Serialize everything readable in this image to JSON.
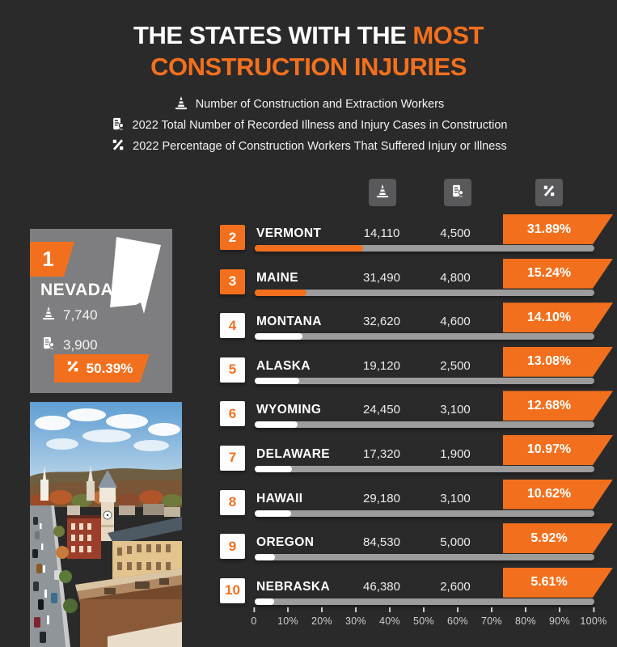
{
  "title": {
    "line1_white": "THE STATES WITH THE ",
    "line1_orange": "MOST",
    "line2_orange": "CONSTRUCTION INJURIES"
  },
  "legend": [
    {
      "icon": "cone-icon",
      "label": "Number of Construction and Extraction Workers"
    },
    {
      "icon": "injury-report-icon",
      "label": "2022 Total Number of Recorded Illness and Injury Cases in Construction"
    },
    {
      "icon": "percent-icon",
      "label": "2022 Percentage of Construction Workers That Suffered Injury or Illness"
    }
  ],
  "columns": {
    "workers_icon": "cone-icon",
    "cases_icon": "injury-report-icon",
    "percent_icon": "percent-icon"
  },
  "leader": {
    "rank": "1",
    "state": "NEVADA",
    "workers": "7,740",
    "cases": "3,900",
    "percent": "50.39%"
  },
  "rows": [
    {
      "rank": "2",
      "state": "VERMONT",
      "workers": "14,110",
      "cases": "4,500",
      "percent": "31.89%",
      "pct": 31.89,
      "accent": "orange"
    },
    {
      "rank": "3",
      "state": "MAINE",
      "workers": "31,490",
      "cases": "4,800",
      "percent": "15.24%",
      "pct": 15.24,
      "accent": "orange"
    },
    {
      "rank": "4",
      "state": "MONTANA",
      "workers": "32,620",
      "cases": "4,600",
      "percent": "14.10%",
      "pct": 14.1,
      "accent": "white"
    },
    {
      "rank": "5",
      "state": "ALASKA",
      "workers": "19,120",
      "cases": "2,500",
      "percent": "13.08%",
      "pct": 13.08,
      "accent": "white"
    },
    {
      "rank": "6",
      "state": "WYOMING",
      "workers": "24,450",
      "cases": "3,100",
      "percent": "12.68%",
      "pct": 12.68,
      "accent": "white"
    },
    {
      "rank": "7",
      "state": "DELAWARE",
      "workers": "17,320",
      "cases": "1,900",
      "percent": "10.97%",
      "pct": 10.97,
      "accent": "white"
    },
    {
      "rank": "8",
      "state": "HAWAII",
      "workers": "29,180",
      "cases": "3,100",
      "percent": "10.62%",
      "pct": 10.62,
      "accent": "white"
    },
    {
      "rank": "9",
      "state": "OREGON",
      "workers": "84,530",
      "cases": "5,000",
      "percent": "5.92%",
      "pct": 5.92,
      "accent": "white"
    },
    {
      "rank": "10",
      "state": "NEBRASKA",
      "workers": "46,380",
      "cases": "2,600",
      "percent": "5.61%",
      "pct": 5.61,
      "accent": "white"
    }
  ],
  "axis": {
    "ticks": [
      "0",
      "10%",
      "20%",
      "30%",
      "40%",
      "50%",
      "60%",
      "70%",
      "80%",
      "90%",
      "100%"
    ]
  },
  "colors": {
    "background": "#2b2a2a",
    "accent_orange": "#f2701d",
    "card_gray": "#7e7d7f",
    "icon_box_gray": "#59595b",
    "bar_track": "#9c9c9c",
    "bar_fill_white": "#ffffff"
  },
  "chart_data": {
    "type": "bar",
    "title": "The States with the Most Construction Injuries",
    "categories": [
      "NEVADA",
      "VERMONT",
      "MAINE",
      "MONTANA",
      "ALASKA",
      "WYOMING",
      "DELAWARE",
      "HAWAII",
      "OREGON",
      "NEBRASKA"
    ],
    "series": [
      {
        "name": "Number of Construction and Extraction Workers",
        "values": [
          7740,
          14110,
          31490,
          32620,
          19120,
          24450,
          17320,
          29180,
          84530,
          46380
        ]
      },
      {
        "name": "2022 Total Number of Recorded Illness and Injury Cases in Construction",
        "values": [
          3900,
          4500,
          4800,
          4600,
          2500,
          3100,
          1900,
          3100,
          5000,
          2600
        ]
      },
      {
        "name": "2022 Percentage of Construction Workers That Suffered Injury or Illness (%)",
        "values": [
          50.39,
          31.89,
          15.24,
          14.1,
          13.08,
          12.68,
          10.97,
          10.62,
          5.92,
          5.61
        ]
      }
    ],
    "bar_axis": {
      "label": "",
      "range_percent": [
        0,
        100
      ],
      "tick_labels": [
        "0",
        "10%",
        "20%",
        "30%",
        "40%",
        "50%",
        "60%",
        "70%",
        "80%",
        "90%",
        "100%"
      ]
    },
    "legend_position": "top",
    "grid": false
  }
}
